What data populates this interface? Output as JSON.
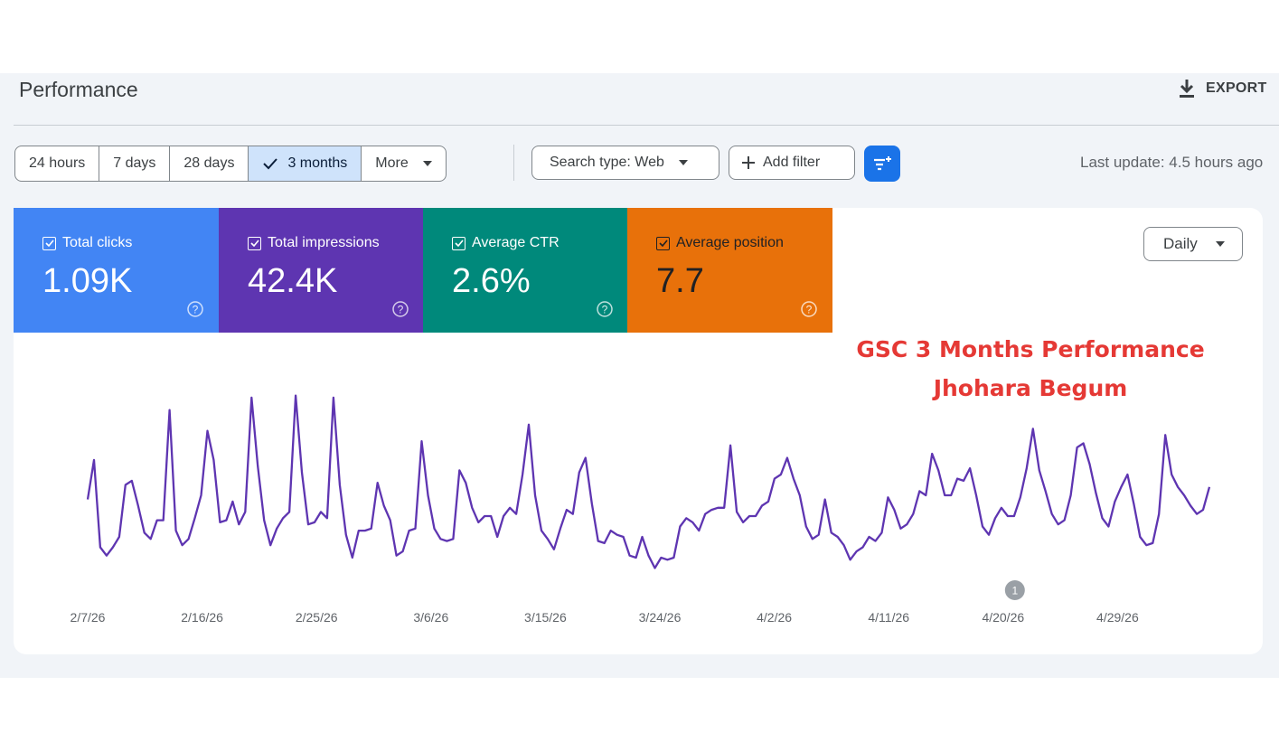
{
  "page": {
    "title": "Performance",
    "export_label": "EXPORT"
  },
  "date_range": {
    "options": [
      "24 hours",
      "7 days",
      "28 days",
      "3 months",
      "More"
    ],
    "selected": "3 months"
  },
  "filters": {
    "search_type": "Search type: Web",
    "add_filter": "Add filter"
  },
  "last_update": "Last update: 4.5 hours ago",
  "metrics": [
    {
      "label": "Total clicks",
      "value": "1.09K",
      "color": "#4285f4",
      "checked": true
    },
    {
      "label": "Total impressions",
      "value": "42.4K",
      "color": "#5e35b1",
      "checked": true
    },
    {
      "label": "Average CTR",
      "value": "2.6%",
      "color": "#00897b",
      "checked": true
    },
    {
      "label": "Average position",
      "value": "7.7",
      "color": "#e8710a",
      "checked": true
    }
  ],
  "granularity": "Daily",
  "annotation": {
    "line1": "GSC 3 Months Performance",
    "line2": "Jhohara Begum"
  },
  "chart_data": {
    "type": "line",
    "x_labels": [
      "2/7/26",
      "2/16/26",
      "2/25/26",
      "3/6/26",
      "3/15/26",
      "3/24/26",
      "4/2/26",
      "4/11/26",
      "4/20/26",
      "4/29/26"
    ],
    "marker": {
      "label": "1",
      "x_label": "4/20/26"
    },
    "series": [
      {
        "name": "Total impressions",
        "color": "#5e35b1",
        "values": [
          0.38,
          0.57,
          0.15,
          0.11,
          0.15,
          0.2,
          0.45,
          0.47,
          0.35,
          0.22,
          0.19,
          0.28,
          0.28,
          0.81,
          0.23,
          0.16,
          0.19,
          0.29,
          0.4,
          0.71,
          0.57,
          0.27,
          0.28,
          0.37,
          0.26,
          0.32,
          0.87,
          0.54,
          0.28,
          0.16,
          0.24,
          0.29,
          0.32,
          0.88,
          0.51,
          0.26,
          0.27,
          0.32,
          0.29,
          0.87,
          0.45,
          0.21,
          0.1,
          0.23,
          0.23,
          0.24,
          0.46,
          0.35,
          0.28,
          0.11,
          0.13,
          0.23,
          0.24,
          0.66,
          0.4,
          0.24,
          0.19,
          0.18,
          0.19,
          0.52,
          0.46,
          0.34,
          0.27,
          0.3,
          0.3,
          0.2,
          0.3,
          0.34,
          0.31,
          0.5,
          0.74,
          0.4,
          0.23,
          0.19,
          0.14,
          0.24,
          0.33,
          0.31,
          0.51,
          0.58,
          0.36,
          0.18,
          0.17,
          0.23,
          0.21,
          0.2,
          0.11,
          0.1,
          0.2,
          0.11,
          0.05,
          0.1,
          0.09,
          0.1,
          0.25,
          0.29,
          0.27,
          0.23,
          0.31,
          0.33,
          0.34,
          0.34,
          0.64,
          0.32,
          0.27,
          0.3,
          0.3,
          0.35,
          0.37,
          0.48,
          0.5,
          0.58,
          0.48,
          0.4,
          0.25,
          0.19,
          0.21,
          0.38,
          0.22,
          0.2,
          0.16,
          0.09,
          0.13,
          0.15,
          0.2,
          0.18,
          0.22,
          0.39,
          0.33,
          0.24,
          0.26,
          0.31,
          0.42,
          0.4,
          0.6,
          0.52,
          0.4,
          0.4,
          0.48,
          0.47,
          0.53,
          0.4,
          0.25,
          0.21,
          0.29,
          0.34,
          0.3,
          0.3,
          0.39,
          0.53,
          0.72,
          0.52,
          0.42,
          0.31,
          0.26,
          0.28,
          0.4,
          0.63,
          0.65,
          0.55,
          0.41,
          0.29,
          0.25,
          0.37,
          0.44,
          0.5,
          0.36,
          0.2,
          0.16,
          0.17,
          0.31,
          0.69,
          0.5,
          0.44,
          0.4,
          0.35,
          0.31,
          0.33,
          0.44
        ]
      }
    ]
  }
}
